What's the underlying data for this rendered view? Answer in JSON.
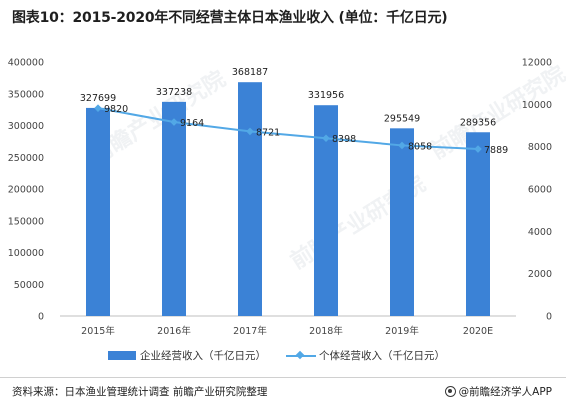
{
  "title": "图表10：2015-2020年不同经营主体日本渔业收入 (单位：千亿日元)",
  "source_label": "资料来源：日本渔业管理统计调查 前瞻产业研究院整理",
  "brand_label": "@前瞻经济学人APP",
  "watermark_text": "前瞻产业研究院",
  "colors": {
    "bar": "#3b82d6",
    "line": "#52a8e6",
    "axis": "#bfbfbf",
    "grid": "#e6e6e6"
  },
  "chart_data": {
    "type": "bar+line",
    "categories": [
      "2015年",
      "2016年",
      "2017年",
      "2018年",
      "2019年",
      "2020E"
    ],
    "series": [
      {
        "name": "企业经营收入（千亿日元）",
        "type": "bar",
        "axis": "left",
        "values": [
          327699,
          337238,
          368187,
          331956,
          295549,
          289356
        ]
      },
      {
        "name": "个体经营收入（千亿日元）",
        "type": "line",
        "axis": "right",
        "values": [
          9820,
          9164,
          8721,
          8398,
          8058,
          7889
        ]
      }
    ],
    "left_axis": {
      "ylim": [
        0,
        400000
      ],
      "ticks": [
        0,
        50000,
        100000,
        150000,
        200000,
        250000,
        300000,
        350000,
        400000
      ]
    },
    "right_axis": {
      "ylim": [
        0,
        12000
      ],
      "ticks": [
        0,
        2000,
        4000,
        6000,
        8000,
        10000,
        12000
      ]
    },
    "legend_position": "bottom",
    "grid": false
  }
}
